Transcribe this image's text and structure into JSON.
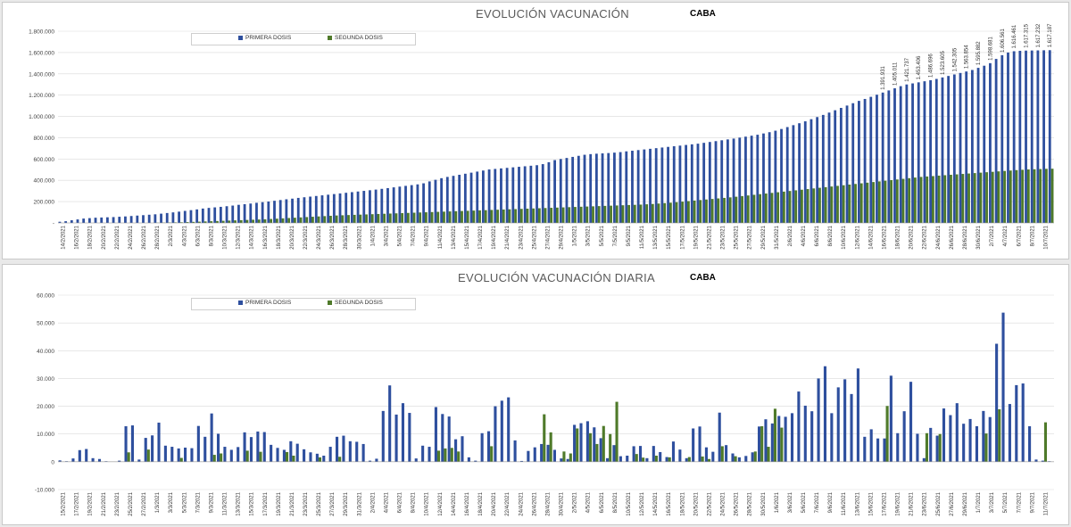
{
  "chart_data": [
    {
      "type": "bar",
      "title": "EVOLUCIÓN VACUNACIÓN",
      "subtitle": "CABA",
      "legend": "top-left",
      "grid": true,
      "ylim": [
        0,
        1800000
      ],
      "yticks": [
        "-",
        "200.000",
        "400.000",
        "600.000",
        "800.000",
        "1.000.000",
        "1.200.000",
        "1.400.000",
        "1.600.000",
        "1.800.000"
      ],
      "x_tick_labels": [
        "14/2/2021",
        "16/2/2021",
        "18/2/2021",
        "20/2/2021",
        "22/2/2021",
        "24/2/2021",
        "26/2/2021",
        "28/2/2021",
        "2/3/2021",
        "4/3/2021",
        "6/3/2021",
        "8/3/2021",
        "10/3/2021",
        "12/3/2021",
        "14/3/2021",
        "16/3/2021",
        "18/3/2021",
        "20/3/2021",
        "22/3/2021",
        "24/3/2021",
        "26/3/2021",
        "28/3/2021",
        "30/3/2021",
        "1/4/2021",
        "3/4/2021",
        "5/4/2021",
        "7/4/2021",
        "9/4/2021",
        "11/4/2021",
        "13/4/2021",
        "15/4/2021",
        "17/4/2021",
        "19/4/2021",
        "21/4/2021",
        "23/4/2021",
        "25/4/2021",
        "27/4/2021",
        "29/4/2021",
        "1/5/2021",
        "3/5/2021",
        "5/5/2021",
        "7/5/2021",
        "9/5/2021",
        "11/5/2021",
        "13/5/2021",
        "15/5/2021",
        "17/5/2021",
        "19/5/2021",
        "21/5/2021",
        "23/5/2021",
        "25/5/2021",
        "27/5/2021",
        "29/5/2021",
        "31/5/2021",
        "2/6/2021",
        "4/6/2021",
        "6/6/2021",
        "8/6/2021",
        "10/6/2021",
        "12/6/2021",
        "14/6/2021",
        "16/6/2021",
        "18/6/2021",
        "20/6/2021",
        "22/6/2021",
        "24/6/2021",
        "26/6/2021",
        "28/6/2021",
        "30/6/2021",
        "2/7/2021",
        "4/7/2021",
        "6/7/2021",
        "8/7/2021",
        "10/7/2021"
      ],
      "series": [
        {
          "name": "PRIMERA DOSIS",
          "color": "#2e4f9e",
          "values": [
            11000,
            16000,
            25000,
            33000,
            41000,
            45000,
            49000,
            51000,
            53000,
            55000,
            58000,
            61000,
            65000,
            69000,
            73000,
            77000,
            81000,
            87000,
            93000,
            99000,
            106000,
            113000,
            120000,
            127000,
            135000,
            141000,
            146000,
            151000,
            157000,
            163000,
            170000,
            176000,
            182000,
            189000,
            195000,
            201000,
            208000,
            215000,
            222000,
            228000,
            235000,
            241000,
            247000,
            253000,
            259000,
            265000,
            271000,
            277000,
            283000,
            289000,
            295000,
            301000,
            307000,
            313000,
            320000,
            327000,
            334000,
            341000,
            348000,
            355000,
            362000,
            372000,
            390000,
            405000,
            420000,
            432000,
            442000,
            452000,
            462000,
            472000,
            482000,
            492000,
            502000,
            507000,
            512000,
            517000,
            522000,
            527000,
            532000,
            537000,
            542000,
            552000,
            570000,
            590000,
            600000,
            610000,
            620000,
            630000,
            640000,
            646000,
            650000,
            653000,
            656000,
            660000,
            665000,
            672000,
            678000,
            684000,
            690000,
            696000,
            702000,
            708000,
            714000,
            720000,
            726000,
            732000,
            738000,
            744000,
            752000,
            760000,
            768000,
            776000,
            784000,
            792000,
            801000,
            810000,
            819000,
            828000,
            840000,
            852000,
            866000,
            882000,
            900000,
            918000,
            936000,
            954000,
            974000,
            994000,
            1014000,
            1036000,
            1058000,
            1080000,
            1102000,
            1124000,
            1146000,
            1164000,
            1184000,
            1204000,
            1224000,
            1244000,
            1264000,
            1284000,
            1300000,
            1310000,
            1320000,
            1330000,
            1340000,
            1352000,
            1366000,
            1380000,
            1394000,
            1408000,
            1422000,
            1436000,
            1456000,
            1476000,
            1500000,
            1540000,
            1575000,
            1600000,
            1612000,
            1616000,
            1618000,
            1619000,
            1620000,
            1621000,
            1622000
          ]
        },
        {
          "name": "SEGUNDA DOSIS",
          "color": "#4f7a2a",
          "values": [
            0,
            0,
            0,
            0,
            0,
            0,
            0,
            0,
            0,
            0,
            0,
            0,
            0,
            500,
            1000,
            1500,
            2000,
            3000,
            4000,
            5000,
            6000,
            8000,
            10000,
            12000,
            14000,
            16000,
            18000,
            20000,
            22000,
            24000,
            26000,
            28000,
            30000,
            32000,
            34000,
            37000,
            40000,
            43000,
            46000,
            49000,
            52000,
            55000,
            58000,
            61000,
            64000,
            67000,
            70000,
            72000,
            74000,
            76000,
            78000,
            80000,
            82000,
            84000,
            86000,
            88000,
            90000,
            92000,
            94000,
            96000,
            98000,
            100000,
            102000,
            104000,
            106000,
            108000,
            110000,
            112000,
            114000,
            116000,
            118000,
            120000,
            122000,
            124000,
            126000,
            128000,
            130000,
            132000,
            134000,
            136000,
            138000,
            140000,
            142000,
            144000,
            146000,
            148000,
            150000,
            152000,
            154000,
            156000,
            158000,
            160000,
            162000,
            164000,
            166000,
            168000,
            170000,
            172000,
            175000,
            178000,
            182000,
            186000,
            190000,
            195000,
            200000,
            205000,
            210000,
            215000,
            220000,
            225000,
            230000,
            235000,
            240000,
            246000,
            252000,
            258000,
            264000,
            270000,
            276000,
            282000,
            288000,
            294000,
            300000,
            306000,
            312000,
            318000,
            324000,
            330000,
            336000,
            342000,
            348000,
            354000,
            360000,
            366000,
            372000,
            378000,
            384000,
            390000,
            396000,
            402000,
            408000,
            414000,
            420000,
            426000,
            432000,
            436000,
            440000,
            444000,
            448000,
            452000,
            456000,
            460000,
            464000,
            468000,
            472000,
            476000,
            480000,
            484000,
            488000,
            492000,
            496000,
            499000,
            502000,
            504000,
            506000,
            508000,
            509000,
            510000,
            511000
          ]
        }
      ],
      "data_labels_first": [
        "1.617.187",
        "1.617.232",
        "1.617.315",
        "1.616.461",
        "1.606.561",
        "1.598.681",
        "1.595.882",
        "1.563.854",
        "1.542.305",
        "1.523.605",
        "1.486.696",
        "1.453.406",
        "1.421.737",
        "1.405.011",
        "1.391.931"
      ]
    },
    {
      "type": "bar",
      "title": "EVOLUCIÓN VACUNACIÓN DIARIA",
      "subtitle": "CABA",
      "legend": "top-left",
      "grid": true,
      "ylim": [
        -10000,
        60000
      ],
      "yticks": [
        "-10.000",
        "0",
        "10.000",
        "20.000",
        "30.000",
        "40.000",
        "50.000",
        "60.000"
      ],
      "x_tick_labels": [
        "15/2/2021",
        "17/2/2021",
        "19/2/2021",
        "21/2/2021",
        "23/2/2021",
        "25/2/2021",
        "27/2/2021",
        "1/3/2021",
        "3/3/2021",
        "5/3/2021",
        "7/3/2021",
        "9/3/2021",
        "11/3/2021",
        "13/3/2021",
        "15/3/2021",
        "17/3/2021",
        "19/3/2021",
        "21/3/2021",
        "23/3/2021",
        "25/3/2021",
        "27/3/2021",
        "29/3/2021",
        "31/3/2021",
        "2/4/2021",
        "4/4/2021",
        "6/4/2021",
        "8/4/2021",
        "10/4/2021",
        "12/4/2021",
        "14/4/2021",
        "16/4/2021",
        "18/4/2021",
        "20/4/2021",
        "22/4/2021",
        "24/4/2021",
        "26/4/2021",
        "28/4/2021",
        "30/4/2021",
        "2/5/2021",
        "4/5/2021",
        "6/5/2021",
        "8/5/2021",
        "10/5/2021",
        "12/5/2021",
        "14/5/2021",
        "16/5/2021",
        "18/5/2021",
        "20/5/2021",
        "22/5/2021",
        "24/5/2021",
        "26/5/2021",
        "28/5/2021",
        "30/5/2021",
        "1/6/2021",
        "3/6/2021",
        "5/6/2021",
        "7/6/2021",
        "9/6/2021",
        "11/6/2021",
        "13/6/2021",
        "15/6/2021",
        "17/6/2021",
        "19/6/2021",
        "21/6/2021",
        "23/6/2021",
        "25/6/2021",
        "27/6/2021",
        "29/6/2021",
        "1/7/2021",
        "3/7/2021",
        "5/7/2021",
        "7/7/2021",
        "9/7/2021",
        "11/7/2021"
      ],
      "series": [
        {
          "name": "PRIMERA DOSIS",
          "color": "#2e4f9e",
          "values": [
            500,
            200,
            1200,
            4200,
            4600,
            1300,
            1000,
            200,
            100,
            400,
            12800,
            13100,
            800,
            8600,
            9500,
            14100,
            5800,
            5400,
            4800,
            5100,
            4900,
            12900,
            9000,
            17400,
            10100,
            5400,
            4300,
            5300,
            10600,
            8900,
            10900,
            10700,
            6100,
            5000,
            4300,
            7400,
            6500,
            4500,
            3400,
            2900,
            2200,
            5400,
            9000,
            9400,
            7400,
            7200,
            6400,
            400,
            1100,
            18300,
            27500,
            17000,
            21100,
            17600,
            1200,
            5800,
            5400,
            19700,
            17200,
            16300,
            8100,
            9200,
            1600,
            400,
            10300,
            11000,
            20000,
            22000,
            23200,
            7700,
            300,
            3900,
            5200,
            6400,
            6100,
            4300,
            1200,
            1000,
            13300,
            13900,
            14600,
            12400,
            8500,
            1300,
            6000,
            2000,
            2200,
            5600,
            5700,
            1300,
            5700,
            3500,
            1700,
            7300,
            4400,
            1300,
            12000,
            12700,
            5200,
            3600,
            17700,
            6000,
            3000,
            1600,
            2100,
            3400,
            12700,
            15300,
            13800,
            16500,
            16200,
            17500,
            25300,
            20200,
            18200,
            30000,
            34400,
            17500,
            26800,
            29700,
            24400,
            33600,
            9000,
            11700,
            8400,
            8400,
            31000,
            10300,
            18200,
            28800,
            10100,
            1300,
            12200,
            9400,
            19200,
            16800,
            21100,
            13700,
            15400,
            12800,
            18300,
            16100,
            42500,
            53700,
            20800,
            27600,
            28200,
            12800,
            800,
            400,
            200
          ]
        },
        {
          "name": "SEGUNDA DOSIS",
          "color": "#4f7a2a",
          "values": [
            0,
            0,
            0,
            0,
            0,
            0,
            0,
            0,
            0,
            0,
            3400,
            0,
            0,
            4400,
            0,
            0,
            0,
            0,
            1400,
            0,
            0,
            0,
            0,
            2500,
            3000,
            0,
            0,
            0,
            4000,
            0,
            3600,
            0,
            0,
            0,
            3500,
            2200,
            0,
            0,
            0,
            1600,
            0,
            0,
            1800,
            0,
            0,
            0,
            0,
            0,
            0,
            0,
            0,
            0,
            0,
            0,
            0,
            0,
            0,
            4000,
            4800,
            5000,
            3700,
            0,
            0,
            0,
            0,
            5600,
            0,
            0,
            0,
            0,
            0,
            0,
            0,
            17100,
            10600,
            0,
            3700,
            3000,
            12000,
            0,
            10300,
            6400,
            12900,
            10000,
            21600,
            0,
            0,
            2800,
            1500,
            0,
            2200,
            0,
            1600,
            0,
            0,
            1700,
            0,
            1900,
            1000,
            0,
            5600,
            0,
            2000,
            0,
            0,
            3700,
            12800,
            5400,
            19100,
            12300,
            0,
            0,
            0,
            0,
            0,
            0,
            0,
            0,
            0,
            0,
            0,
            0,
            0,
            0,
            0,
            20100,
            0,
            0,
            0,
            0,
            0,
            10300,
            0,
            10000,
            0,
            0,
            0,
            0,
            0,
            0,
            10200,
            0,
            18900,
            0,
            0,
            0,
            0,
            0,
            0,
            14200,
            0,
            11600,
            0,
            2600,
            3700,
            0,
            3400,
            0,
            0,
            0
          ]
        }
      ]
    }
  ]
}
